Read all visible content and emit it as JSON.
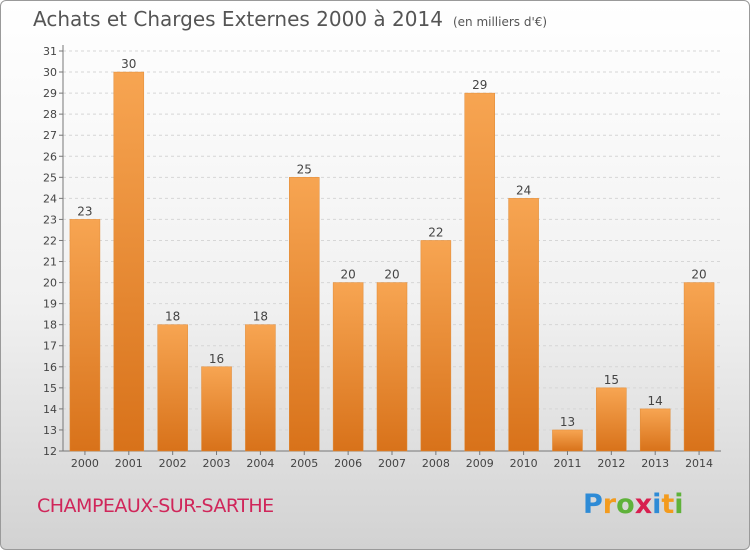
{
  "title": "Achats et Charges Externes 2000 à 2014",
  "unit": "(en milliers d'€)",
  "commune": "CHAMPEAUX-SUR-SARTHE",
  "logo": {
    "text": "Proxiti",
    "letters": [
      "P",
      "r",
      "o",
      "x",
      "i",
      "t",
      "i"
    ],
    "colors": [
      "#2e8bd6",
      "#f39b1e",
      "#5fb23a",
      "#d81f4f",
      "#2e8bd6",
      "#f39b1e",
      "#5fb23a"
    ]
  },
  "colors": {
    "bar_top": "#f7a552",
    "bar_bottom": "#d8721a",
    "title": "#555555",
    "commune": "#d0265a"
  },
  "chart_data": {
    "type": "bar",
    "categories": [
      "2000",
      "2001",
      "2002",
      "2003",
      "2004",
      "2005",
      "2006",
      "2007",
      "2008",
      "2009",
      "2010",
      "2011",
      "2012",
      "2013",
      "2014"
    ],
    "values": [
      23,
      30,
      18,
      16,
      18,
      25,
      20,
      20,
      22,
      29,
      24,
      13,
      15,
      14,
      20
    ],
    "ylim": [
      12,
      31
    ],
    "yticks": [
      12,
      13,
      14,
      15,
      16,
      17,
      18,
      19,
      20,
      21,
      22,
      23,
      24,
      25,
      26,
      27,
      28,
      29,
      30,
      31
    ],
    "grid": true
  }
}
